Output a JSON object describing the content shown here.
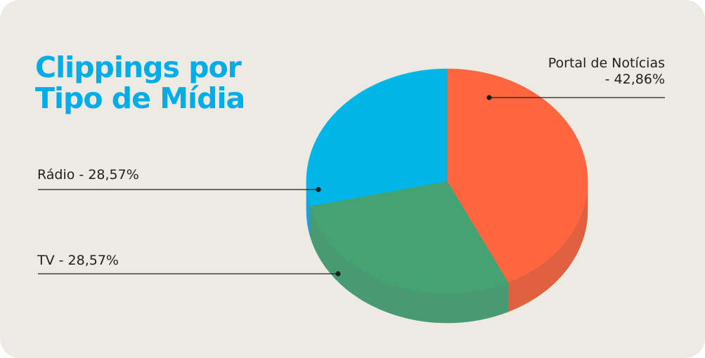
{
  "title_lines": [
    "Clippings por",
    "Tipo de Mídia"
  ],
  "chart_data": {
    "type": "pie",
    "title": "Clippings por Tipo de Mídia",
    "slices": [
      {
        "label": "Portal de Notícias",
        "value": 42.86,
        "color": "#FF6640",
        "side_color": "#E0603F"
      },
      {
        "label": "TV",
        "value": 28.57,
        "color": "#45A373",
        "side_color": "#479A72"
      },
      {
        "label": "Rádio",
        "value": 28.57,
        "color": "#00B5E8",
        "side_color": "#1F9FD4"
      }
    ],
    "labels": {
      "portal": [
        "Portal de Notícias",
        "- 42,86%"
      ],
      "radio": "Rádio - 28,57%",
      "tv": "TV - 28,57%"
    },
    "background": "#ECEAE2"
  }
}
